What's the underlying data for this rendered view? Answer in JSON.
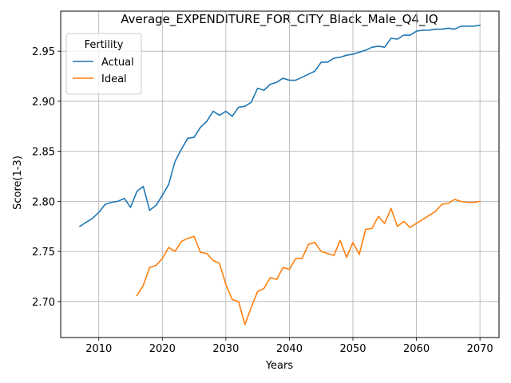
{
  "chart_data": {
    "type": "line",
    "title": "Average_EXPENDITURE_FOR_CITY_Black_Male_Q4_IQ",
    "xlabel": "Years",
    "ylabel": "Score(1-3)",
    "xlim": [
      2004,
      2073
    ],
    "ylim": [
      2.664,
      2.99
    ],
    "xticks": [
      2010,
      2020,
      2030,
      2040,
      2050,
      2060,
      2070
    ],
    "yticks": [
      2.7,
      2.75,
      2.8,
      2.85,
      2.9,
      2.95
    ],
    "ytick_labels": [
      "2.70",
      "2.75",
      "2.80",
      "2.85",
      "2.90",
      "2.95"
    ],
    "grid": true,
    "legend": {
      "title": "Fertility",
      "position": "top-left"
    },
    "series": [
      {
        "name": "Actual",
        "color": "#1f77b4",
        "x": [
          2007,
          2008,
          2009,
          2010,
          2011,
          2012,
          2013,
          2014,
          2015,
          2016,
          2017,
          2018,
          2019,
          2020,
          2021,
          2022,
          2023,
          2024,
          2025,
          2026,
          2027,
          2028,
          2029,
          2030,
          2031,
          2032,
          2033,
          2034,
          2035,
          2036,
          2037,
          2038,
          2039,
          2040,
          2041,
          2042,
          2043,
          2044,
          2045,
          2046,
          2047,
          2048,
          2049,
          2050,
          2051,
          2052,
          2053,
          2054,
          2055,
          2056,
          2057,
          2058,
          2059,
          2060,
          2061,
          2062,
          2063,
          2064,
          2065,
          2066,
          2067,
          2068,
          2069,
          2070
        ],
        "y": [
          2.775,
          2.779,
          2.783,
          2.789,
          2.797,
          2.799,
          2.8,
          2.803,
          2.794,
          2.81,
          2.815,
          2.791,
          2.796,
          2.806,
          2.817,
          2.84,
          2.852,
          2.863,
          2.864,
          2.874,
          2.88,
          2.89,
          2.886,
          2.89,
          2.885,
          2.894,
          2.895,
          2.899,
          2.913,
          2.911,
          2.917,
          2.919,
          2.923,
          2.921,
          2.921,
          2.924,
          2.927,
          2.93,
          2.939,
          2.939,
          2.943,
          2.944,
          2.946,
          2.947,
          2.949,
          2.951,
          2.954,
          2.955,
          2.954,
          2.963,
          2.962,
          2.966,
          2.966,
          2.97,
          2.971,
          2.971,
          2.972,
          2.972,
          2.973,
          2.972,
          2.975,
          2.975,
          2.975,
          2.976
        ]
      },
      {
        "name": "Ideal",
        "color": "#ff7f0e",
        "x": [
          2016,
          2017,
          2018,
          2019,
          2020,
          2021,
          2022,
          2023,
          2024,
          2025,
          2026,
          2027,
          2028,
          2029,
          2030,
          2031,
          2032,
          2033,
          2034,
          2035,
          2036,
          2037,
          2038,
          2039,
          2040,
          2041,
          2042,
          2043,
          2044,
          2045,
          2046,
          2047,
          2048,
          2049,
          2050,
          2051,
          2052,
          2053,
          2054,
          2055,
          2056,
          2057,
          2058,
          2059,
          2060,
          2061,
          2062,
          2063,
          2064,
          2065,
          2066,
          2067,
          2068,
          2069,
          2070
        ],
        "y": [
          2.706,
          2.716,
          2.734,
          2.736,
          2.743,
          2.754,
          2.75,
          2.76,
          2.763,
          2.765,
          2.749,
          2.748,
          2.741,
          2.738,
          2.717,
          2.702,
          2.7,
          2.677,
          2.694,
          2.71,
          2.713,
          2.724,
          2.722,
          2.734,
          2.732,
          2.743,
          2.743,
          2.757,
          2.759,
          2.75,
          2.748,
          2.746,
          2.761,
          2.744,
          2.759,
          2.747,
          2.772,
          2.773,
          2.785,
          2.778,
          2.793,
          2.775,
          2.78,
          2.774,
          2.778,
          2.782,
          2.786,
          2.79,
          2.797,
          2.798,
          2.802,
          2.8,
          2.799,
          2.799,
          2.8
        ]
      }
    ]
  }
}
